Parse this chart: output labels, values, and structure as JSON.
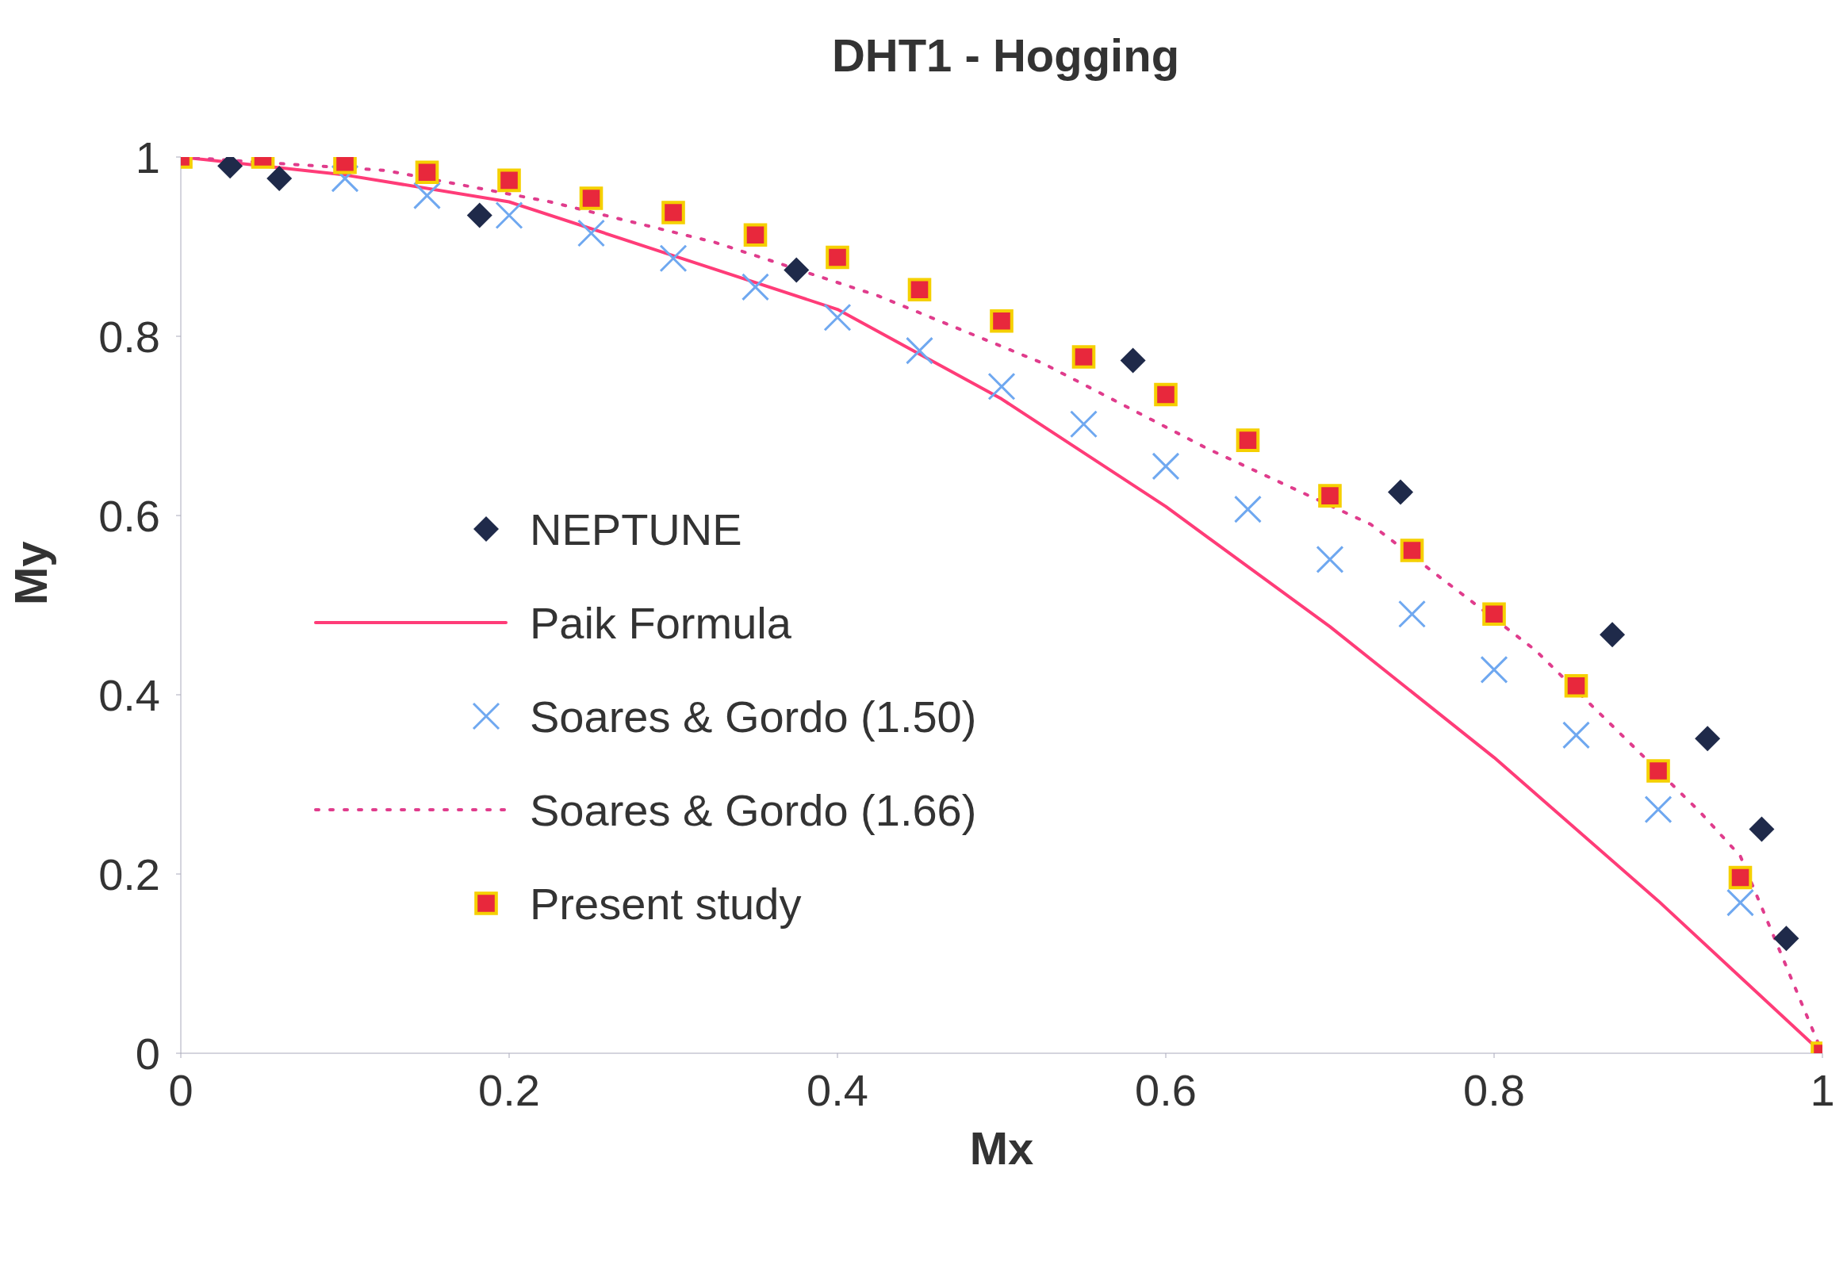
{
  "chart_data": {
    "type": "scatter",
    "title": "DHT1 - Hogging",
    "xlabel": "Mx",
    "ylabel": "My",
    "xlim": [
      0,
      1
    ],
    "ylim": [
      0,
      1
    ],
    "xticks": [
      0,
      0.2,
      0.4,
      0.6,
      0.8,
      1
    ],
    "yticks": [
      0,
      0.2,
      0.4,
      0.6,
      0.8,
      1
    ],
    "grid": false,
    "legend": "left",
    "series": [
      {
        "name": "NEPTUNE",
        "marker": "diamond",
        "color": "#1f2a4a",
        "x": [
          0.03,
          0.06,
          0.182,
          0.375,
          0.58,
          0.743,
          0.872,
          0.93,
          0.963,
          0.978
        ],
        "values": [
          0.99,
          0.976,
          0.935,
          0.874,
          0.773,
          0.626,
          0.467,
          0.351,
          0.25,
          0.128
        ]
      },
      {
        "name": "Paik Formula",
        "type": "line",
        "marker": "none",
        "line_style": "solid",
        "color": "#ff3c78",
        "x": [
          0,
          0.1,
          0.2,
          0.3,
          0.4,
          0.5,
          0.6,
          0.7,
          0.8,
          0.9,
          0.95,
          1
        ],
        "values": [
          1,
          0.98,
          0.95,
          0.89,
          0.83,
          0.73,
          0.61,
          0.476,
          0.33,
          0.17,
          0.085,
          0
        ]
      },
      {
        "name": "Soares & Gordo (1.50)",
        "marker": "cross",
        "color": "#6fa8f0",
        "x": [
          0.1,
          0.15,
          0.2,
          0.25,
          0.3,
          0.35,
          0.4,
          0.45,
          0.5,
          0.55,
          0.6,
          0.65,
          0.7,
          0.75,
          0.8,
          0.85,
          0.9,
          0.95
        ],
        "values": [
          0.976,
          0.957,
          0.935,
          0.915,
          0.887,
          0.855,
          0.821,
          0.784,
          0.744,
          0.702,
          0.655,
          0.607,
          0.551,
          0.49,
          0.428,
          0.355,
          0.272,
          0.168
        ]
      },
      {
        "name": "Soares & Gordo (1.66)",
        "type": "line",
        "marker": "none",
        "line_style": "dotted",
        "color": "#e03c8c",
        "x": [
          0,
          0.125,
          0.225,
          0.325,
          0.425,
          0.525,
          0.625,
          0.725,
          0.825,
          0.925,
          0.95,
          1
        ],
        "values": [
          1,
          0.985,
          0.95,
          0.905,
          0.845,
          0.77,
          0.675,
          0.59,
          0.45,
          0.27,
          0.22,
          0
        ]
      },
      {
        "name": "Present study",
        "marker": "square",
        "color": "#e8283c",
        "x": [
          0,
          0.05,
          0.1,
          0.15,
          0.2,
          0.25,
          0.3,
          0.35,
          0.4,
          0.45,
          0.5,
          0.55,
          0.6,
          0.65,
          0.7,
          0.75,
          0.8,
          0.85,
          0.9,
          0.95,
          1
        ],
        "values": [
          1,
          1,
          0.994,
          0.983,
          0.974,
          0.954,
          0.938,
          0.913,
          0.888,
          0.852,
          0.817,
          0.777,
          0.735,
          0.684,
          0.622,
          0.561,
          0.49,
          0.41,
          0.315,
          0.196,
          0
        ]
      }
    ]
  }
}
